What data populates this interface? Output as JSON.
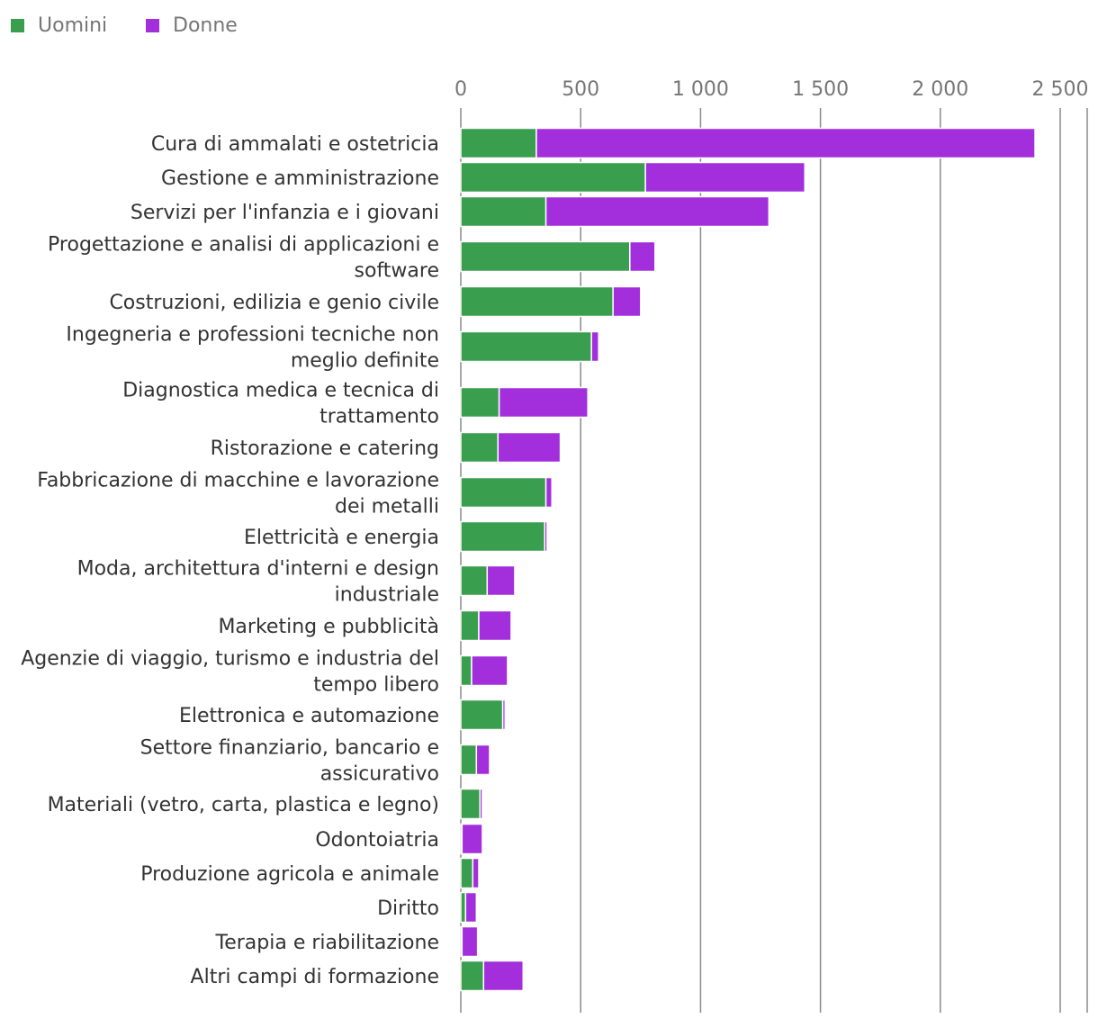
{
  "chart_data": {
    "type": "bar",
    "orientation": "horizontal",
    "stacked": true,
    "legend": "top-left",
    "grid": true,
    "xlim": [
      0,
      2500
    ],
    "ticks": [
      {
        "value": 0,
        "label": "0"
      },
      {
        "value": 500,
        "label": "500"
      },
      {
        "value": 1000,
        "label": "1 000"
      },
      {
        "value": 1500,
        "label": "1 500"
      },
      {
        "value": 2000,
        "label": "2 000"
      },
      {
        "value": 2500,
        "label": "2 500"
      }
    ],
    "categories": [
      [
        "Cura di ammalati e ostetricia"
      ],
      [
        "Gestione e amministrazione"
      ],
      [
        "Servizi per l'infanzia e i giovani"
      ],
      [
        "Progettazione e analisi di applicazioni e",
        "software"
      ],
      [
        "Costruzioni, edilizia e genio civile"
      ],
      [
        "Ingegneria e professioni tecniche non",
        "meglio definite"
      ],
      [
        "Diagnostica medica e tecnica di",
        "trattamento"
      ],
      [
        "Ristorazione e catering"
      ],
      [
        "Fabbricazione di macchine e lavorazione",
        "dei metalli"
      ],
      [
        "Elettricità e energia"
      ],
      [
        "Moda, architettura d'interni e design",
        "industriale"
      ],
      [
        "Marketing e pubblicità"
      ],
      [
        "Agenzie di viaggio, turismo e industria del",
        "tempo libero"
      ],
      [
        "Elettronica e automazione"
      ],
      [
        "Settore finanziario, bancario e",
        "assicurativo"
      ],
      [
        "Materiali (vetro, carta, plastica e legno)"
      ],
      [
        "Odontoiatria"
      ],
      [
        "Produzione agricola e animale"
      ],
      [
        "Diritto"
      ],
      [
        "Terapia e riabilitazione"
      ],
      [
        "Altri campi di formazione"
      ]
    ],
    "series": [
      {
        "name": "Uomini",
        "color": "#3a9e4f",
        "values": [
          315,
          770,
          355,
          705,
          635,
          545,
          160,
          155,
          355,
          350,
          110,
          75,
          45,
          175,
          65,
          80,
          5,
          50,
          20,
          5,
          95
        ]
      },
      {
        "name": "Donne",
        "color": "#a22fdb",
        "values": [
          2080,
          665,
          930,
          105,
          115,
          30,
          370,
          260,
          25,
          10,
          115,
          135,
          150,
          10,
          55,
          10,
          85,
          25,
          45,
          65,
          165
        ]
      }
    ]
  }
}
